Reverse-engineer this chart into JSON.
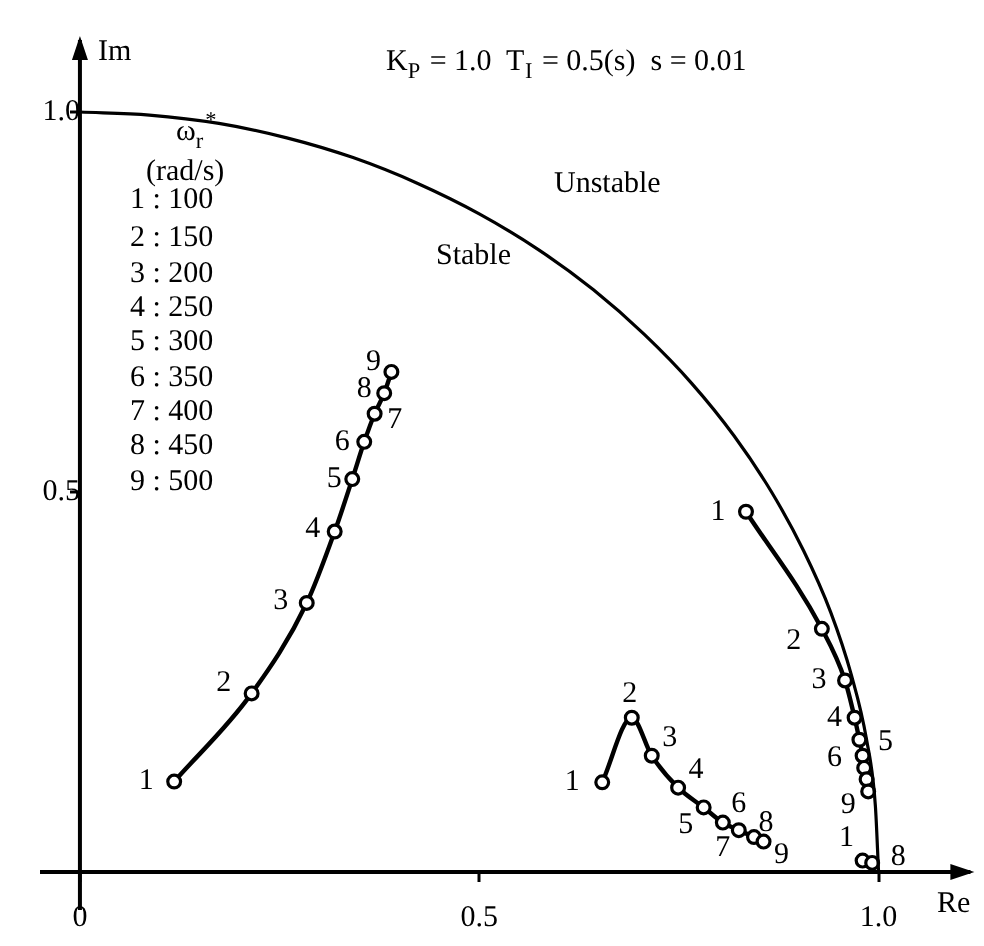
{
  "chart_data": {
    "type": "line",
    "xlabel": "Re",
    "ylabel": "Im",
    "grid": false,
    "legend": false,
    "xlim": [
      -0.05,
      1.12
    ],
    "ylim": [
      -0.05,
      1.1
    ],
    "xticks": [
      {
        "value": 0,
        "label": "0"
      },
      0.5,
      {
        "value": 1,
        "label": "1.0"
      }
    ],
    "yticks": [
      0.5,
      {
        "value": 1,
        "label": "1.0"
      }
    ],
    "annotations": [
      "K$_{P}$ = 1.0  T$_{I}$ = 0.5(s)  s = 0.01",
      "Unstable",
      "Stable",
      "ω$_{r}$$^{*}$",
      "(rad/s)",
      "1 : 100",
      "2 : 150",
      "3 : 200",
      "4 : 250",
      "5 : 300",
      "6 : 350",
      "7 : 400",
      "8 : 450",
      "9 : 500",
      {
        "text": "1",
        "x": 0.118,
        "y": 0.119
      },
      {
        "text": "2",
        "x": 0.215,
        "y": 0.235
      },
      {
        "text": "3",
        "x": 0.284,
        "y": 0.354
      },
      {
        "text": "4",
        "x": 0.319,
        "y": 0.448
      },
      {
        "text": "5",
        "x": 0.341,
        "y": 0.517
      },
      {
        "text": "6",
        "x": 0.356,
        "y": 0.566
      },
      {
        "text": "7",
        "x": 0.369,
        "y": 0.603
      },
      {
        "text": "8",
        "x": 0.381,
        "y": 0.63
      },
      {
        "text": "9",
        "x": 0.39,
        "y": 0.658
      },
      {
        "text": "1",
        "x": 0.834,
        "y": 0.474
      },
      {
        "text": "2",
        "x": 0.929,
        "y": 0.32
      },
      {
        "text": "3",
        "x": 0.958,
        "y": 0.252
      },
      {
        "text": "4",
        "x": 0.97,
        "y": 0.203
      },
      {
        "text": "5",
        "x": 0.976,
        "y": 0.174
      },
      {
        "text": "6",
        "x": 0.98,
        "y": 0.153
      },
      {
        "text": "9",
        "x": 0.987,
        "y": 0.106
      },
      {
        "text": "1",
        "x": 0.654,
        "y": 0.118
      },
      {
        "text": "2",
        "x": 0.691,
        "y": 0.203
      },
      {
        "text": "3",
        "x": 0.716,
        "y": 0.153
      },
      {
        "text": "4",
        "x": 0.749,
        "y": 0.111
      },
      {
        "text": "5",
        "x": 0.781,
        "y": 0.085
      },
      {
        "text": "6",
        "x": 0.805,
        "y": 0.065
      },
      {
        "text": "7",
        "x": 0.825,
        "y": 0.055
      },
      {
        "text": "8",
        "x": 0.844,
        "y": 0.046
      },
      {
        "text": "9",
        "x": 0.856,
        "y": 0.04
      },
      {
        "text": "1",
        "x": 0.98,
        "y": 0.015
      },
      {
        "text": "8",
        "x": 0.992,
        "y": 0.012
      }
    ],
    "series": [
      {
        "color": "#000000",
        "marker": "none",
        "x": [
          0,
          0.087,
          0.174,
          0.259,
          0.342,
          0.423,
          0.5,
          0.574,
          0.643,
          0.707,
          0.766,
          0.819,
          0.866,
          0.906,
          0.94,
          0.966,
          0.985,
          0.996,
          1
        ],
        "values": [
          1,
          0.996,
          0.985,
          0.966,
          0.94,
          0.906,
          0.866,
          0.819,
          0.766,
          0.707,
          0.643,
          0.574,
          0.5,
          0.423,
          0.342,
          0.259,
          0.174,
          0.087,
          0
        ]
      },
      {
        "color": "#000000",
        "marker": "circle",
        "x": [
          0.118,
          0.215,
          0.284,
          0.319,
          0.341,
          0.356,
          0.369,
          0.381,
          0.39
        ],
        "values": [
          0.119,
          0.235,
          0.354,
          0.448,
          0.517,
          0.566,
          0.603,
          0.63,
          0.658
        ]
      },
      {
        "color": "#000000",
        "marker": "circle",
        "x": [
          0.834,
          0.929,
          0.958,
          0.97,
          0.976,
          0.98,
          0.982,
          0.985,
          0.987
        ],
        "values": [
          0.474,
          0.32,
          0.252,
          0.203,
          0.174,
          0.153,
          0.137,
          0.122,
          0.106
        ]
      },
      {
        "color": "#000000",
        "marker": "circle",
        "x": [
          0.654,
          0.691,
          0.716,
          0.749,
          0.781,
          0.805,
          0.825,
          0.844,
          0.856
        ],
        "values": [
          0.118,
          0.203,
          0.153,
          0.111,
          0.085,
          0.065,
          0.055,
          0.046,
          0.04
        ]
      },
      {
        "type": "scatter",
        "color": "#000000",
        "marker": "circle",
        "x": [
          0.98,
          0.992
        ],
        "values": [
          0.015,
          0.012
        ]
      }
    ]
  }
}
